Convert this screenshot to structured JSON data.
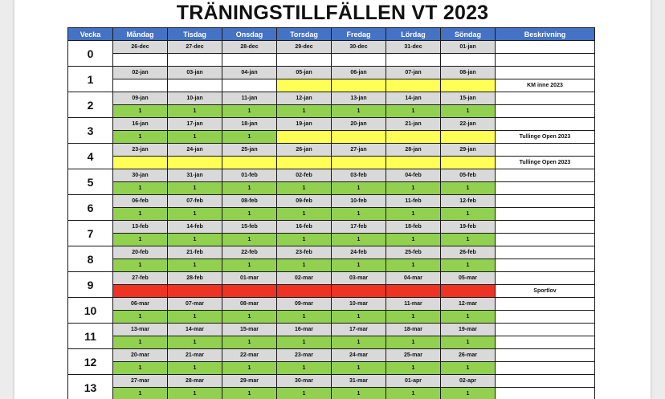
{
  "title": "TRÄNINGSTILLFÄLLEN VT 2023",
  "colors": {
    "header": "#4472c4",
    "training": "#92d050",
    "competition": "#ffff55",
    "holiday": "#ee3322",
    "date_row": "#d9d9d9"
  },
  "headers": [
    "Vecka",
    "Måndag",
    "Tisdag",
    "Onsdag",
    "Torsdag",
    "Fredag",
    "Lördag",
    "Söndag",
    "Beskrivning"
  ],
  "weeks": [
    {
      "week": "0",
      "dates": [
        "26-dec",
        "27-dec",
        "28-dec",
        "29-dec",
        "30-dec",
        "31-dec",
        "01-jan"
      ],
      "status": [
        "",
        "",
        "",
        "",
        "",
        "",
        ""
      ],
      "colors": [
        "white",
        "white",
        "white",
        "white",
        "white",
        "white",
        "white"
      ],
      "desc": ""
    },
    {
      "week": "1",
      "dates": [
        "02-jan",
        "03-jan",
        "04-jan",
        "05-jan",
        "06-jan",
        "07-jan",
        "08-jan"
      ],
      "status": [
        "",
        "",
        "",
        "",
        "",
        "",
        ""
      ],
      "colors": [
        "white",
        "white",
        "white",
        "yellow",
        "yellow",
        "yellow",
        "yellow"
      ],
      "desc": "KM inne 2023"
    },
    {
      "week": "2",
      "dates": [
        "09-jan",
        "10-jan",
        "11-jan",
        "12-jan",
        "13-jan",
        "14-jan",
        "15-jan"
      ],
      "status": [
        "1",
        "1",
        "1",
        "1",
        "1",
        "1",
        "1"
      ],
      "colors": [
        "green",
        "green",
        "green",
        "green",
        "green",
        "green",
        "green"
      ],
      "desc": ""
    },
    {
      "week": "3",
      "dates": [
        "16-jan",
        "17-jan",
        "18-jan",
        "19-jan",
        "20-jan",
        "21-jan",
        "22-jan"
      ],
      "status": [
        "1",
        "1",
        "1",
        "",
        "",
        "",
        ""
      ],
      "colors": [
        "green",
        "green",
        "green",
        "yellow",
        "yellow",
        "yellow",
        "yellow"
      ],
      "desc": "Tullinge Open 2023"
    },
    {
      "week": "4",
      "dates": [
        "23-jan",
        "24-jan",
        "25-jan",
        "26-jan",
        "27-jan",
        "28-jan",
        "29-jan"
      ],
      "status": [
        "",
        "",
        "",
        "",
        "",
        "",
        ""
      ],
      "colors": [
        "yellow",
        "yellow",
        "yellow",
        "yellow",
        "yellow",
        "yellow",
        "yellow"
      ],
      "desc": "Tullinge Open 2023"
    },
    {
      "week": "5",
      "dates": [
        "30-jan",
        "31-jan",
        "01-feb",
        "02-feb",
        "03-feb",
        "04-feb",
        "05-feb"
      ],
      "status": [
        "1",
        "1",
        "1",
        "1",
        "1",
        "1",
        "1"
      ],
      "colors": [
        "green",
        "green",
        "green",
        "green",
        "green",
        "green",
        "green"
      ],
      "desc": ""
    },
    {
      "week": "6",
      "dates": [
        "06-feb",
        "07-feb",
        "08-feb",
        "09-feb",
        "10-feb",
        "11-feb",
        "12-feb"
      ],
      "status": [
        "1",
        "1",
        "1",
        "1",
        "1",
        "1",
        "1"
      ],
      "colors": [
        "green",
        "green",
        "green",
        "green",
        "green",
        "green",
        "green"
      ],
      "desc": ""
    },
    {
      "week": "7",
      "dates": [
        "13-feb",
        "14-feb",
        "15-feb",
        "16-feb",
        "17-feb",
        "18-feb",
        "19-feb"
      ],
      "status": [
        "1",
        "1",
        "1",
        "1",
        "1",
        "1",
        "1"
      ],
      "colors": [
        "green",
        "green",
        "green",
        "green",
        "green",
        "green",
        "green"
      ],
      "desc": ""
    },
    {
      "week": "8",
      "dates": [
        "20-feb",
        "21-feb",
        "22-feb",
        "23-feb",
        "24-feb",
        "25-feb",
        "26-feb"
      ],
      "status": [
        "1",
        "1",
        "1",
        "1",
        "1",
        "1",
        "1"
      ],
      "colors": [
        "green",
        "green",
        "green",
        "green",
        "green",
        "green",
        "green"
      ],
      "desc": ""
    },
    {
      "week": "9",
      "dates": [
        "27-feb",
        "28-feb",
        "01-mar",
        "02-mar",
        "03-mar",
        "04-mar",
        "05-mar"
      ],
      "status": [
        "",
        "",
        "",
        "",
        "",
        "",
        ""
      ],
      "colors": [
        "red",
        "red",
        "red",
        "red",
        "red",
        "red",
        "red"
      ],
      "desc": "Sportlov"
    },
    {
      "week": "10",
      "dates": [
        "06-mar",
        "07-mar",
        "08-mar",
        "09-mar",
        "10-mar",
        "11-mar",
        "12-mar"
      ],
      "status": [
        "1",
        "1",
        "1",
        "1",
        "1",
        "1",
        "1"
      ],
      "colors": [
        "green",
        "green",
        "green",
        "green",
        "green",
        "green",
        "green"
      ],
      "desc": ""
    },
    {
      "week": "11",
      "dates": [
        "13-mar",
        "14-mar",
        "15-mar",
        "16-mar",
        "17-mar",
        "18-mar",
        "19-mar"
      ],
      "status": [
        "1",
        "1",
        "1",
        "1",
        "1",
        "1",
        "1"
      ],
      "colors": [
        "green",
        "green",
        "green",
        "green",
        "green",
        "green",
        "green"
      ],
      "desc": ""
    },
    {
      "week": "12",
      "dates": [
        "20-mar",
        "21-mar",
        "22-mar",
        "23-mar",
        "24-mar",
        "25-mar",
        "26-mar"
      ],
      "status": [
        "1",
        "1",
        "1",
        "1",
        "1",
        "1",
        "1"
      ],
      "colors": [
        "green",
        "green",
        "green",
        "green",
        "green",
        "green",
        "green"
      ],
      "desc": ""
    },
    {
      "week": "13",
      "dates": [
        "27-mar",
        "28-mar",
        "29-mar",
        "30-mar",
        "31-mar",
        "01-apr",
        "02-apr"
      ],
      "status": [
        "1",
        "1",
        "1",
        "1",
        "1",
        "1",
        "1"
      ],
      "colors": [
        "green",
        "green",
        "green",
        "green",
        "green",
        "green",
        "green"
      ],
      "desc": ""
    }
  ]
}
